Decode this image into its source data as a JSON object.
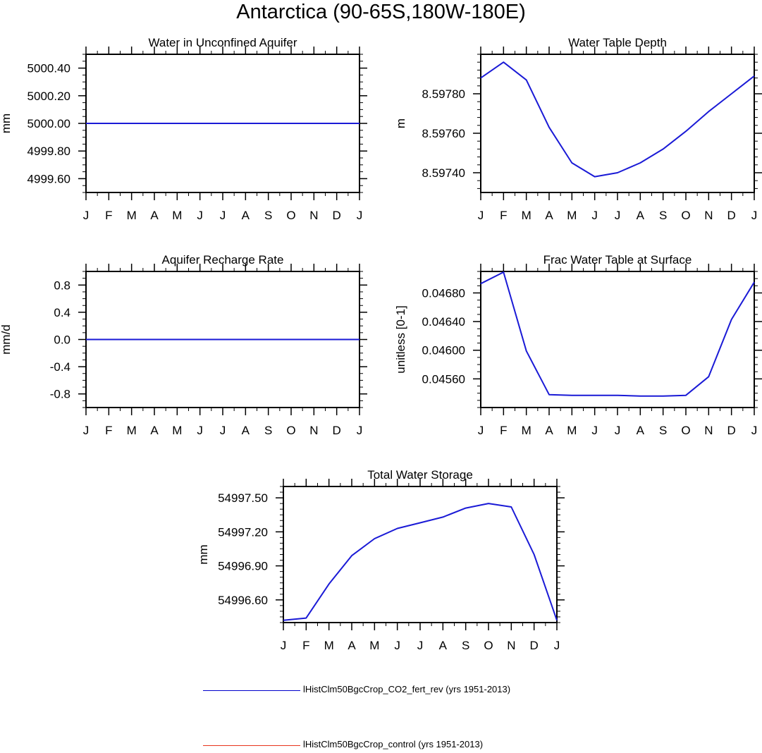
{
  "figure": {
    "title": "Antarctica (90-65S,180W-180E)"
  },
  "legend": {
    "entries": [
      {
        "label": "lHistClm50BgcCrop_CO2_fert_rev (yrs 1951-2013)",
        "color": "#0000cc"
      },
      {
        "label": "lHistClm50BgcCrop_control (yrs 1951-2013)",
        "color": "#e8341c"
      }
    ]
  },
  "chart_data": [
    {
      "type": "line",
      "title": "Water in Unconfined Aquifer",
      "ylabel": "mm",
      "categories": [
        "J",
        "F",
        "M",
        "A",
        "M",
        "J",
        "J",
        "A",
        "S",
        "O",
        "N",
        "D",
        "J"
      ],
      "ylim": [
        4999.5,
        5000.5
      ],
      "yticks": [
        {
          "value": 5000.4,
          "label": "5000.40"
        },
        {
          "value": 5000.2,
          "label": "5000.20"
        },
        {
          "value": 5000.0,
          "label": "5000.00"
        },
        {
          "value": 4999.8,
          "label": "4999.80"
        },
        {
          "value": 4999.6,
          "label": "4999.60"
        }
      ],
      "yminor": 0.05,
      "series": [
        {
          "color": "#1a1ad6",
          "values": [
            5000,
            5000,
            5000,
            5000,
            5000,
            5000,
            5000,
            5000,
            5000,
            5000,
            5000,
            5000,
            5000
          ]
        }
      ]
    },
    {
      "type": "line",
      "title": "Water Table Depth",
      "ylabel": "m",
      "categories": [
        "J",
        "F",
        "M",
        "A",
        "M",
        "J",
        "J",
        "A",
        "S",
        "O",
        "N",
        "D",
        "J"
      ],
      "ylim": [
        8.5973,
        8.598
      ],
      "yticks": [
        {
          "value": 8.5978,
          "label": "8.59780"
        },
        {
          "value": 8.5976,
          "label": "8.59760"
        },
        {
          "value": 8.5974,
          "label": "8.59740"
        }
      ],
      "yminor": 4e-05,
      "series": [
        {
          "color": "#1a1ad6",
          "values": [
            8.59788,
            8.59796,
            8.59787,
            8.59763,
            8.59745,
            8.59738,
            8.5974,
            8.59745,
            8.59752,
            8.59761,
            8.59771,
            8.5978,
            8.59789
          ]
        }
      ]
    },
    {
      "type": "line",
      "title": "Aquifer Recharge Rate",
      "ylabel": "mm/d",
      "categories": [
        "J",
        "F",
        "M",
        "A",
        "M",
        "J",
        "J",
        "A",
        "S",
        "O",
        "N",
        "D",
        "J"
      ],
      "ylim": [
        -1,
        1
      ],
      "yticks": [
        {
          "value": 0.8,
          "label": "0.8"
        },
        {
          "value": 0.4,
          "label": "0.4"
        },
        {
          "value": 0.0,
          "label": "0.0"
        },
        {
          "value": -0.4,
          "label": "-0.4"
        },
        {
          "value": -0.8,
          "label": "-0.8"
        }
      ],
      "yminor": 0.1,
      "series": [
        {
          "color": "#1a1ad6",
          "values": [
            0,
            0,
            0,
            0,
            0,
            0,
            0,
            0,
            0,
            0,
            0,
            0,
            0
          ]
        }
      ]
    },
    {
      "type": "line",
      "title": "Frac Water Table at Surface",
      "ylabel": "unitless [0-1]",
      "categories": [
        "J",
        "F",
        "M",
        "A",
        "M",
        "J",
        "J",
        "A",
        "S",
        "O",
        "N",
        "D",
        "J"
      ],
      "ylim": [
        0.0452,
        0.0471
      ],
      "yticks": [
        {
          "value": 0.0468,
          "label": "0.04680"
        },
        {
          "value": 0.0464,
          "label": "0.04640"
        },
        {
          "value": 0.046,
          "label": "0.04600"
        },
        {
          "value": 0.0456,
          "label": "0.04560"
        }
      ],
      "yminor": 0.0001,
      "series": [
        {
          "color": "#1a1ad6",
          "values": [
            0.04693,
            0.04709,
            0.04599,
            0.04538,
            0.04537,
            0.04537,
            0.04537,
            0.04536,
            0.04536,
            0.04537,
            0.04563,
            0.04643,
            0.04695
          ]
        }
      ]
    },
    {
      "type": "line",
      "title": "Total Water Storage",
      "ylabel": "mm",
      "categories": [
        "J",
        "F",
        "M",
        "A",
        "M",
        "J",
        "J",
        "A",
        "S",
        "O",
        "N",
        "D",
        "J"
      ],
      "ylim": [
        54996.4,
        54997.6
      ],
      "yticks": [
        {
          "value": 54997.5,
          "label": "54997.50"
        },
        {
          "value": 54997.2,
          "label": "54997.20"
        },
        {
          "value": 54996.9,
          "label": "54996.90"
        },
        {
          "value": 54996.6,
          "label": "54996.60"
        }
      ],
      "yminor": 0.05,
      "series": [
        {
          "color": "#1a1ad6",
          "values": [
            54996.42,
            54996.44,
            54996.74,
            54996.99,
            54997.14,
            54997.23,
            54997.28,
            54997.33,
            54997.41,
            54997.45,
            54997.42,
            54997.0,
            54996.42
          ]
        }
      ]
    }
  ]
}
